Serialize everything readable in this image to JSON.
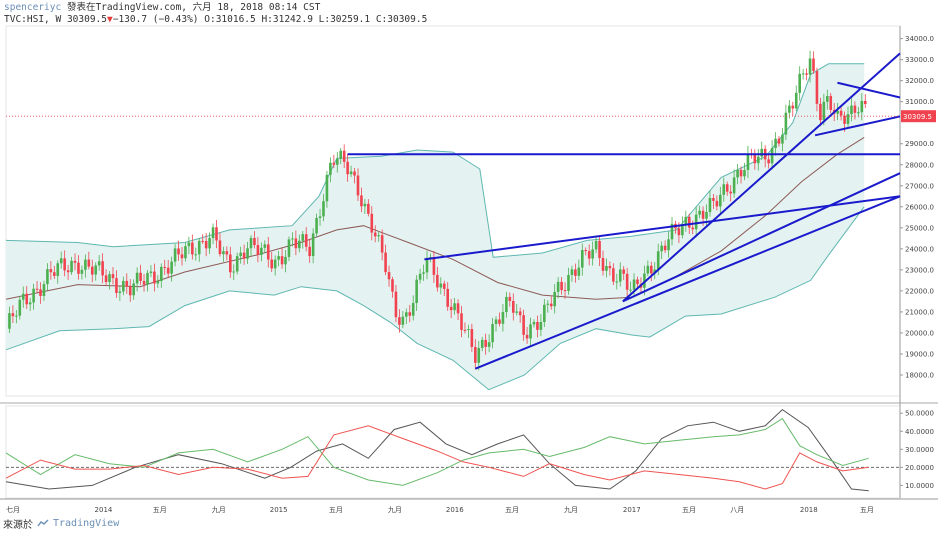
{
  "header": {
    "author": "spenceriyc",
    "published": "發表在TradingView.com, 六月 18, 2018 08:14 CST",
    "symbol": "TVC:HSI, W",
    "last": "30309.5",
    "change": "−130.7 (−0.43%)",
    "ohlc": "O:31016.5 H:31242.9 L:30259.1 C:30309.5"
  },
  "footer": {
    "source": "來源於",
    "brand": "TradingView"
  },
  "colors": {
    "up": "#4caf50",
    "down": "#f0434f",
    "band": "#5fb7b0",
    "band_fill": "#e4f3f2",
    "ma": "#8d5a57",
    "trend": "#1a1acc",
    "price_line": "#f0434f",
    "adx": "#555555",
    "di_plus": "#66bb6a",
    "di_minus": "#ef5350"
  },
  "chart_data": [
    {
      "type": "candlestick",
      "title": "",
      "y_ticks": [
        18000,
        19000,
        20000,
        21000,
        22000,
        23000,
        24000,
        25000,
        26000,
        27000,
        28000,
        29000,
        30000,
        31000,
        32000,
        33000,
        34000
      ],
      "y_tick_labels": [
        "18000.0",
        "19000.0",
        "20000.0",
        "21000.0",
        "22000.0",
        "23000.0",
        "24000.0",
        "25000.0",
        "26000.0",
        "27000.0",
        "28000.0",
        "29000.0",
        "30000.0",
        "31000.0",
        "32000.0",
        "33000.0",
        "34000.0"
      ],
      "ylim": [
        17000,
        34600
      ],
      "last_price_label": "30309.5",
      "last_price": 30309.5,
      "x_ticks": [
        {
          "t": 0.0,
          "label": "七月"
        },
        {
          "t": 0.109,
          "label": "2014"
        },
        {
          "t": 0.172,
          "label": "五月"
        },
        {
          "t": 0.238,
          "label": "九月"
        },
        {
          "t": 0.305,
          "label": "2015"
        },
        {
          "t": 0.369,
          "label": "五月"
        },
        {
          "t": 0.435,
          "label": "九月"
        },
        {
          "t": 0.502,
          "label": "2016"
        },
        {
          "t": 0.566,
          "label": "五月"
        },
        {
          "t": 0.632,
          "label": "九月"
        },
        {
          "t": 0.7,
          "label": "2017"
        },
        {
          "t": 0.764,
          "label": "五月"
        },
        {
          "t": 0.818,
          "label": "八月"
        },
        {
          "t": 0.898,
          "label": "2018"
        },
        {
          "t": 0.963,
          "label": "五月"
        }
      ],
      "price_path": [
        [
          0,
          20200
        ],
        [
          0.02,
          21500
        ],
        [
          0.05,
          22800
        ],
        [
          0.08,
          23400
        ],
        [
          0.11,
          22700
        ],
        [
          0.14,
          22100
        ],
        [
          0.17,
          22900
        ],
        [
          0.2,
          23800
        ],
        [
          0.23,
          24700
        ],
        [
          0.25,
          23000
        ],
        [
          0.27,
          24300
        ],
        [
          0.3,
          23300
        ],
        [
          0.32,
          24400
        ],
        [
          0.34,
          23900
        ],
        [
          0.355,
          26700
        ],
        [
          0.365,
          28400
        ],
        [
          0.38,
          27900
        ],
        [
          0.395,
          26800
        ],
        [
          0.41,
          25100
        ],
        [
          0.425,
          23000
        ],
        [
          0.435,
          21000
        ],
        [
          0.445,
          20700
        ],
        [
          0.455,
          21600
        ],
        [
          0.47,
          23400
        ],
        [
          0.485,
          22400
        ],
        [
          0.5,
          21300
        ],
        [
          0.515,
          19800
        ],
        [
          0.525,
          18900
        ],
        [
          0.535,
          19700
        ],
        [
          0.55,
          20600
        ],
        [
          0.565,
          21400
        ],
        [
          0.58,
          20200
        ],
        [
          0.6,
          20600
        ],
        [
          0.615,
          21900
        ],
        [
          0.63,
          22800
        ],
        [
          0.645,
          23500
        ],
        [
          0.66,
          23900
        ],
        [
          0.675,
          23000
        ],
        [
          0.69,
          22600
        ],
        [
          0.7,
          21800
        ],
        [
          0.715,
          22900
        ],
        [
          0.73,
          23700
        ],
        [
          0.745,
          24600
        ],
        [
          0.76,
          25300
        ],
        [
          0.775,
          25600
        ],
        [
          0.79,
          25900
        ],
        [
          0.805,
          26900
        ],
        [
          0.82,
          27700
        ],
        [
          0.835,
          28200
        ],
        [
          0.85,
          28400
        ],
        [
          0.865,
          29400
        ],
        [
          0.88,
          30800
        ],
        [
          0.893,
          32500
        ],
        [
          0.9,
          33200
        ],
        [
          0.91,
          30500
        ],
        [
          0.92,
          31000
        ],
        [
          0.93,
          30000
        ],
        [
          0.945,
          30600
        ],
        [
          0.955,
          31100
        ],
        [
          0.965,
          30300
        ]
      ],
      "bollinger_upper": [
        [
          0,
          24400
        ],
        [
          0.08,
          24300
        ],
        [
          0.12,
          24100
        ],
        [
          0.2,
          24300
        ],
        [
          0.25,
          24900
        ],
        [
          0.32,
          25100
        ],
        [
          0.35,
          26500
        ],
        [
          0.37,
          28300
        ],
        [
          0.42,
          28400
        ],
        [
          0.46,
          28700
        ],
        [
          0.5,
          28600
        ],
        [
          0.53,
          27800
        ],
        [
          0.545,
          23600
        ],
        [
          0.6,
          23800
        ],
        [
          0.65,
          24400
        ],
        [
          0.7,
          24600
        ],
        [
          0.75,
          24900
        ],
        [
          0.8,
          27400
        ],
        [
          0.85,
          28400
        ],
        [
          0.88,
          30000
        ],
        [
          0.9,
          32300
        ],
        [
          0.92,
          32800
        ],
        [
          0.96,
          32800
        ]
      ],
      "bollinger_lower": [
        [
          0,
          19200
        ],
        [
          0.06,
          20100
        ],
        [
          0.12,
          20200
        ],
        [
          0.16,
          20300
        ],
        [
          0.2,
          21300
        ],
        [
          0.25,
          22000
        ],
        [
          0.3,
          21800
        ],
        [
          0.33,
          22200
        ],
        [
          0.37,
          22000
        ],
        [
          0.4,
          21300
        ],
        [
          0.43,
          20500
        ],
        [
          0.46,
          19500
        ],
        [
          0.5,
          18700
        ],
        [
          0.54,
          17300
        ],
        [
          0.58,
          18000
        ],
        [
          0.62,
          19500
        ],
        [
          0.66,
          20200
        ],
        [
          0.7,
          19900
        ],
        [
          0.72,
          19800
        ],
        [
          0.76,
          20800
        ],
        [
          0.8,
          20900
        ],
        [
          0.86,
          21700
        ],
        [
          0.9,
          22500
        ],
        [
          0.92,
          23700
        ],
        [
          0.96,
          26000
        ]
      ],
      "moving_average": [
        [
          0,
          21600
        ],
        [
          0.08,
          22300
        ],
        [
          0.15,
          22200
        ],
        [
          0.2,
          22900
        ],
        [
          0.28,
          23700
        ],
        [
          0.33,
          24300
        ],
        [
          0.37,
          24900
        ],
        [
          0.4,
          25100
        ],
        [
          0.45,
          24300
        ],
        [
          0.5,
          23500
        ],
        [
          0.55,
          22400
        ],
        [
          0.6,
          21800
        ],
        [
          0.66,
          21600
        ],
        [
          0.7,
          21700
        ],
        [
          0.75,
          22700
        ],
        [
          0.8,
          23900
        ],
        [
          0.85,
          25600
        ],
        [
          0.89,
          27200
        ],
        [
          0.93,
          28500
        ],
        [
          0.96,
          29300
        ]
      ],
      "trendlines": [
        {
          "from": [
            0.382,
            28500
          ],
          "to": [
            1.0,
            28500
          ]
        },
        {
          "from": [
            0.468,
            23500
          ],
          "to": [
            1.0,
            26500
          ]
        },
        {
          "from": [
            0.525,
            18300
          ],
          "to": [
            1.0,
            26500
          ]
        },
        {
          "from": [
            0.69,
            21500
          ],
          "to": [
            1.0,
            27600
          ]
        },
        {
          "from": [
            0.69,
            21500
          ],
          "to": [
            1.0,
            33300
          ]
        },
        {
          "from": [
            0.905,
            29400
          ],
          "to": [
            1.0,
            30300
          ]
        },
        {
          "from": [
            0.93,
            31900
          ],
          "to": [
            1.0,
            31200
          ]
        }
      ]
    },
    {
      "type": "line",
      "title": "",
      "y_ticks": [
        10000,
        20000,
        30000,
        40000,
        50000
      ],
      "y_tick_labels": [
        "10.0000",
        "20.0000",
        "30.0000",
        "40.0000",
        "50.0000"
      ],
      "ylim": [
        3000,
        54000
      ],
      "reference_line": 20000,
      "series": [
        {
          "key": "adx",
          "values": [
            [
              0,
              12000
            ],
            [
              0.05,
              8000
            ],
            [
              0.1,
              10000
            ],
            [
              0.15,
              20000
            ],
            [
              0.2,
              27000
            ],
            [
              0.25,
              22000
            ],
            [
              0.3,
              14000
            ],
            [
              0.33,
              20000
            ],
            [
              0.36,
              29000
            ],
            [
              0.39,
              33000
            ],
            [
              0.42,
              25000
            ],
            [
              0.45,
              41000
            ],
            [
              0.48,
              45000
            ],
            [
              0.51,
              33000
            ],
            [
              0.54,
              27000
            ],
            [
              0.57,
              33000
            ],
            [
              0.6,
              38000
            ],
            [
              0.63,
              22000
            ],
            [
              0.66,
              10000
            ],
            [
              0.7,
              8000
            ],
            [
              0.73,
              18000
            ],
            [
              0.76,
              36000
            ],
            [
              0.79,
              43000
            ],
            [
              0.82,
              45000
            ],
            [
              0.85,
              40000
            ],
            [
              0.88,
              43000
            ],
            [
              0.9,
              52000
            ],
            [
              0.93,
              42000
            ],
            [
              0.96,
              22000
            ],
            [
              0.98,
              8000
            ],
            [
              1.0,
              7000
            ]
          ]
        },
        {
          "key": "di_plus",
          "values": [
            [
              0,
              28000
            ],
            [
              0.04,
              16000
            ],
            [
              0.08,
              27000
            ],
            [
              0.12,
              22000
            ],
            [
              0.16,
              20000
            ],
            [
              0.2,
              28000
            ],
            [
              0.24,
              30000
            ],
            [
              0.28,
              23000
            ],
            [
              0.32,
              30000
            ],
            [
              0.35,
              37000
            ],
            [
              0.38,
              20000
            ],
            [
              0.42,
              13000
            ],
            [
              0.46,
              10000
            ],
            [
              0.5,
              17000
            ],
            [
              0.53,
              24000
            ],
            [
              0.56,
              28000
            ],
            [
              0.6,
              30000
            ],
            [
              0.63,
              26000
            ],
            [
              0.67,
              31000
            ],
            [
              0.7,
              37000
            ],
            [
              0.74,
              33000
            ],
            [
              0.78,
              35000
            ],
            [
              0.82,
              37000
            ],
            [
              0.85,
              38000
            ],
            [
              0.88,
              41000
            ],
            [
              0.9,
              47000
            ],
            [
              0.92,
              32000
            ],
            [
              0.94,
              27000
            ],
            [
              0.97,
              21000
            ],
            [
              1.0,
              25000
            ]
          ]
        },
        {
          "key": "di_minus",
          "values": [
            [
              0,
              14000
            ],
            [
              0.04,
              24000
            ],
            [
              0.08,
              19000
            ],
            [
              0.12,
              19000
            ],
            [
              0.16,
              21000
            ],
            [
              0.2,
              16000
            ],
            [
              0.24,
              20000
            ],
            [
              0.28,
              19000
            ],
            [
              0.32,
              14000
            ],
            [
              0.35,
              15000
            ],
            [
              0.38,
              38000
            ],
            [
              0.42,
              43000
            ],
            [
              0.46,
              36000
            ],
            [
              0.5,
              29000
            ],
            [
              0.53,
              23000
            ],
            [
              0.56,
              20000
            ],
            [
              0.6,
              15000
            ],
            [
              0.63,
              22000
            ],
            [
              0.67,
              16000
            ],
            [
              0.7,
              13000
            ],
            [
              0.74,
              18000
            ],
            [
              0.78,
              16000
            ],
            [
              0.82,
              14000
            ],
            [
              0.85,
              12000
            ],
            [
              0.88,
              8000
            ],
            [
              0.9,
              11000
            ],
            [
              0.92,
              28000
            ],
            [
              0.94,
              23000
            ],
            [
              0.97,
              18000
            ],
            [
              1.0,
              20000
            ]
          ]
        }
      ]
    }
  ]
}
